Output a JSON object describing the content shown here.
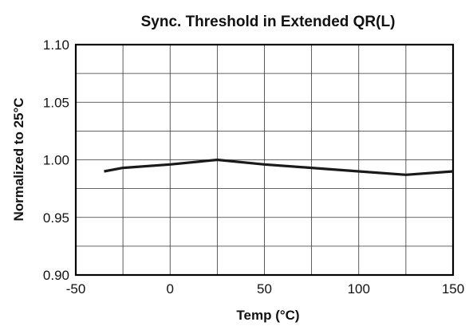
{
  "chart_data": {
    "type": "line",
    "title": "Sync. Threshold in Extended QR(L)",
    "xlabel": "Temp (°C)",
    "ylabel": "Normalized to 25°C",
    "xlim": [
      -50,
      150
    ],
    "ylim": [
      0.9,
      1.1
    ],
    "x_ticks": [
      -50,
      0,
      50,
      100,
      150
    ],
    "x_tick_labels": [
      "-50",
      "0",
      "50",
      "100",
      "150"
    ],
    "y_ticks": [
      0.9,
      0.95,
      1.0,
      1.05,
      1.1
    ],
    "y_tick_labels": [
      "0.90",
      "0.95",
      "1.00",
      "1.05",
      "1.10"
    ],
    "x_grid_step": 25,
    "y_grid_step": 0.025,
    "grid": true,
    "series": [
      {
        "color": "#1a1a1a",
        "x": [
          -35,
          -25,
          0,
          25,
          50,
          75,
          100,
          125,
          150
        ],
        "y": [
          0.99,
          0.993,
          0.996,
          1.0,
          0.996,
          0.993,
          0.99,
          0.987,
          0.99
        ]
      }
    ]
  }
}
